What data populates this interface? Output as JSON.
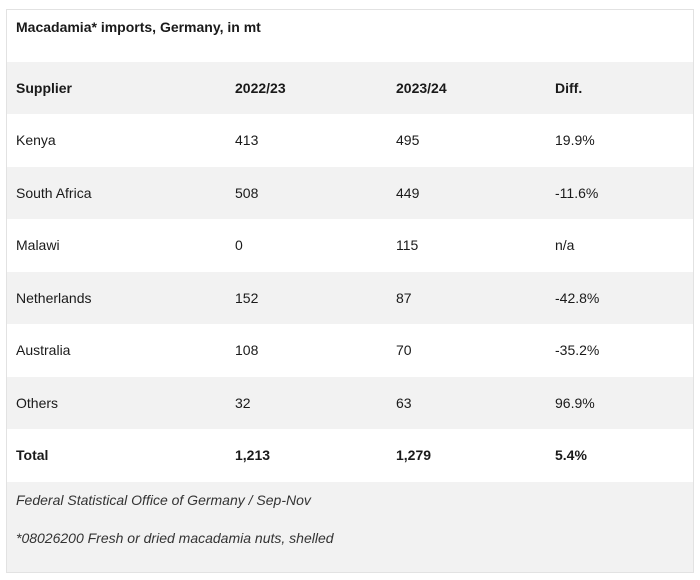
{
  "title": "Macadamia* imports, Germany, in mt",
  "headers": [
    "Supplier",
    "2022/23",
    "2023/24",
    "Diff."
  ],
  "rows": [
    [
      "Kenya",
      "413",
      "495",
      "19.9%"
    ],
    [
      "South Africa",
      "508",
      "449",
      "-11.6%"
    ],
    [
      "Malawi",
      "0",
      "115",
      "n/a"
    ],
    [
      "Netherlands",
      "152",
      "87",
      "-42.8%"
    ],
    [
      "Australia",
      "108",
      "70",
      "-35.2%"
    ],
    [
      "Others",
      "32",
      "63",
      "96.9%"
    ]
  ],
  "total": [
    "Total",
    "1,213",
    "1,279",
    "5.4%"
  ],
  "source": "Federal Statistical Office of Germany / Sep-Nov",
  "footnote": "*08026200 Fresh or dried macadamia nuts, shelled"
}
